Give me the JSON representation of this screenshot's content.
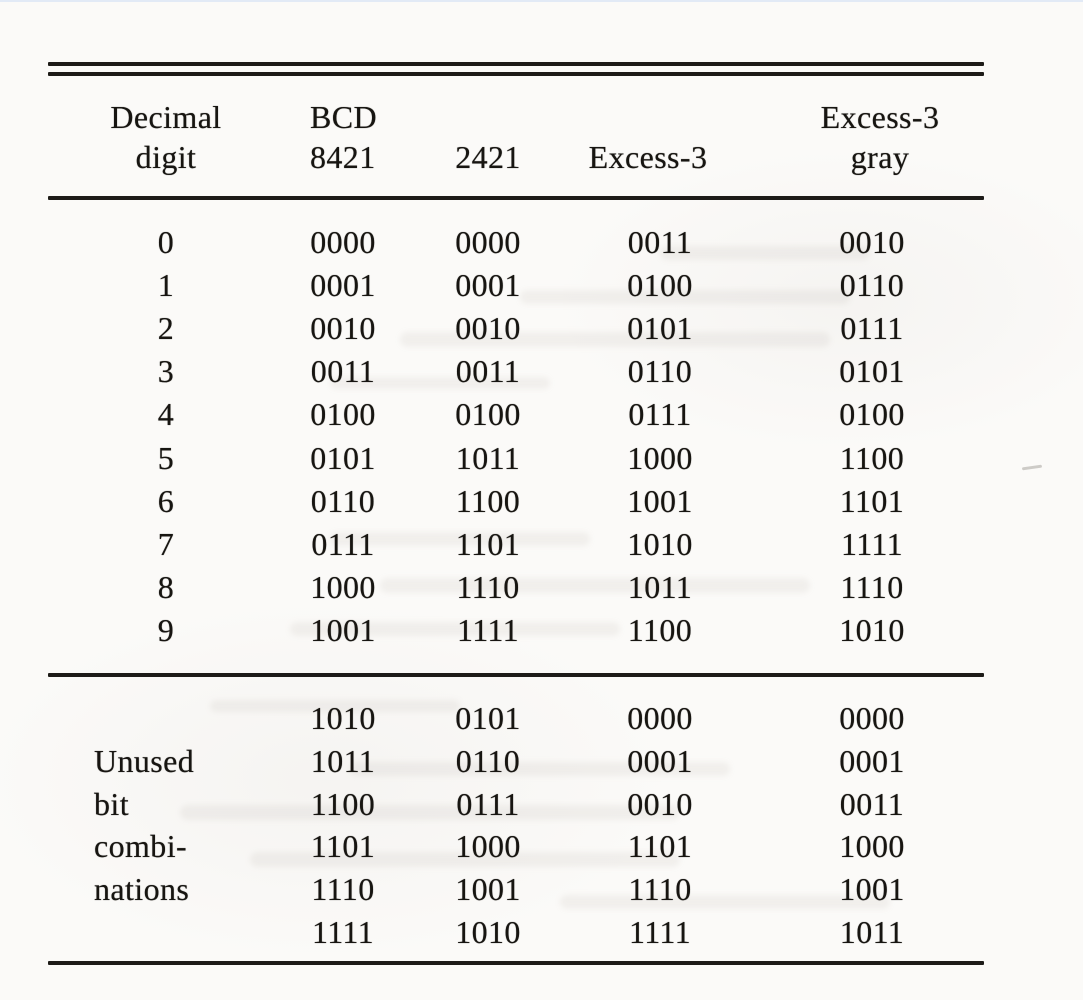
{
  "document": {
    "kind_label": "binary codes comparison table",
    "colors": {
      "ink": "#1d1b18",
      "paper": "#fbfaf8"
    }
  },
  "table": {
    "header": {
      "decimal_line1": "Decimal",
      "decimal_line2": "digit",
      "bcd_line1": "BCD",
      "bcd_line2": "8421",
      "col_2421": "2421",
      "col_excess3": "Excess-3",
      "gray_line1": "Excess-3",
      "gray_line2": "gray"
    },
    "digit_rows": [
      {
        "digit": "0",
        "codes": [
          "0000",
          "0000",
          "0011",
          "0010"
        ]
      },
      {
        "digit": "1",
        "codes": [
          "0001",
          "0001",
          "0100",
          "0110"
        ]
      },
      {
        "digit": "2",
        "codes": [
          "0010",
          "0010",
          "0101",
          "0111"
        ]
      },
      {
        "digit": "3",
        "codes": [
          "0011",
          "0011",
          "0110",
          "0101"
        ]
      },
      {
        "digit": "4",
        "codes": [
          "0100",
          "0100",
          "0111",
          "0100"
        ]
      },
      {
        "digit": "5",
        "codes": [
          "0101",
          "1011",
          "1000",
          "1100"
        ]
      },
      {
        "digit": "6",
        "codes": [
          "0110",
          "1100",
          "1001",
          "1101"
        ]
      },
      {
        "digit": "7",
        "codes": [
          "0111",
          "1101",
          "1010",
          "1111"
        ]
      },
      {
        "digit": "8",
        "codes": [
          "1000",
          "1110",
          "1011",
          "1110"
        ]
      },
      {
        "digit": "9",
        "codes": [
          "1001",
          "1111",
          "1100",
          "1010"
        ]
      }
    ],
    "unused_section": {
      "rows": [
        {
          "label": "",
          "codes": [
            "1010",
            "0101",
            "0000",
            "0000"
          ]
        },
        {
          "label": "Unused",
          "codes": [
            "1011",
            "0110",
            "0001",
            "0001"
          ]
        },
        {
          "label": "bit",
          "codes": [
            "1100",
            "0111",
            "0010",
            "0011"
          ]
        },
        {
          "label": "combi-",
          "codes": [
            "1101",
            "1000",
            "1101",
            "1000"
          ]
        },
        {
          "label": "nations",
          "codes": [
            "1110",
            "1001",
            "1110",
            "1001"
          ]
        },
        {
          "label": "",
          "codes": [
            "1111",
            "1010",
            "1111",
            "1011"
          ]
        }
      ]
    }
  }
}
